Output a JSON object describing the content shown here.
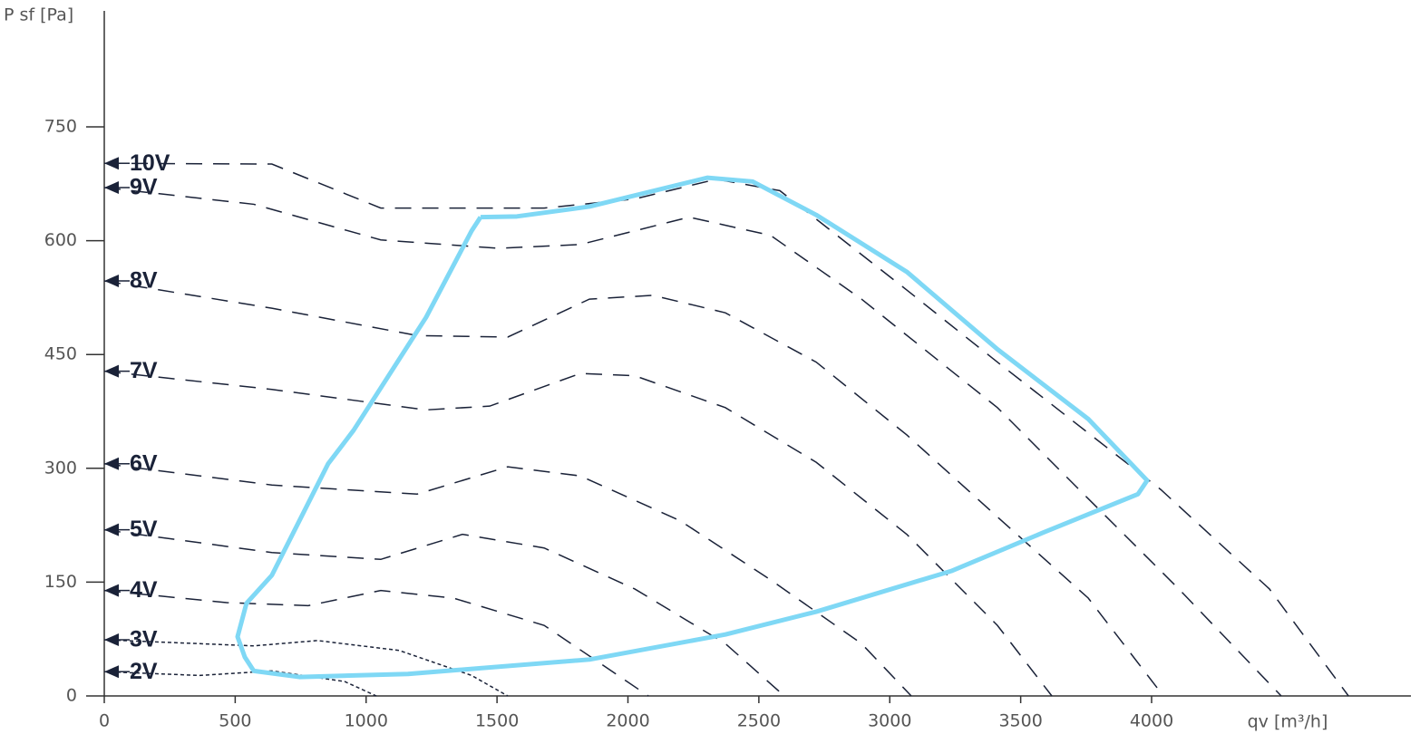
{
  "chart_data": {
    "type": "line",
    "ylabel": "P sf [Pa]",
    "xlabel": "qv [m³/h]",
    "xlim": [
      0,
      5000
    ],
    "ylim": [
      0,
      900
    ],
    "xticks": [
      0,
      500,
      1000,
      1500,
      2000,
      2500,
      3000,
      3500,
      4000
    ],
    "yticks": [
      0,
      150,
      300,
      450,
      600,
      750
    ],
    "series": [
      {
        "name": "10V",
        "color": "#1a2238",
        "dash": "dashed",
        "x": [
          0,
          640,
          1056,
          1680,
          2026,
          2338,
          2580,
          3065,
          3411,
          4035,
          4450,
          4752
        ],
        "values": [
          702,
          701,
          643,
          643,
          655,
          681,
          666,
          535,
          440,
          272,
          141,
          0
        ]
      },
      {
        "name": "9V",
        "color": "#1a2238",
        "dash": "dashed",
        "x": [
          0,
          571,
          1056,
          1506,
          1818,
          2234,
          2545,
          2892,
          3411,
          3758,
          4104,
          4495
        ],
        "values": [
          670,
          648,
          601,
          590,
          595,
          631,
          607,
          523,
          380,
          260,
          141,
          0
        ]
      },
      {
        "name": "8V",
        "color": "#1a2238",
        "dash": "dashed",
        "x": [
          0,
          640,
          1195,
          1541,
          1853,
          2095,
          2372,
          2719,
          3065,
          3411,
          3758,
          4045
        ],
        "values": [
          547,
          511,
          475,
          473,
          523,
          528,
          505,
          440,
          344,
          236,
          129,
          0
        ]
      },
      {
        "name": "7V",
        "color": "#1a2238",
        "dash": "dashed",
        "x": [
          0,
          640,
          1229,
          1472,
          1818,
          2026,
          2372,
          2719,
          3065,
          3411,
          3619
        ],
        "values": [
          428,
          404,
          377,
          382,
          425,
          422,
          380,
          308,
          213,
          93,
          0
        ]
      },
      {
        "name": "6V",
        "color": "#1a2238",
        "dash": "dashed",
        "x": [
          0,
          640,
          1195,
          1541,
          1818,
          2199,
          2545,
          2892,
          3082
        ],
        "values": [
          306,
          278,
          266,
          302,
          290,
          231,
          153,
          69,
          0
        ]
      },
      {
        "name": "5V",
        "color": "#1a2238",
        "dash": "dashed",
        "x": [
          0,
          640,
          1056,
          1368,
          1680,
          2026,
          2372,
          2597
        ],
        "values": [
          219,
          189,
          180,
          213,
          195,
          141,
          69,
          0
        ]
      },
      {
        "name": "4V",
        "color": "#1a2238",
        "dash": "dashed",
        "x": [
          0,
          467,
          779,
          1056,
          1333,
          1680,
          2078
        ],
        "values": [
          139,
          123,
          119,
          139,
          129,
          93,
          0
        ]
      },
      {
        "name": "3V",
        "color": "#1a2238",
        "dash": "dotted",
        "x": [
          0,
          571,
          814,
          1126,
          1403,
          1541
        ],
        "values": [
          74,
          66,
          73,
          60,
          27,
          0
        ]
      },
      {
        "name": "2V",
        "color": "#1a2238",
        "dash": "dotted",
        "x": [
          0,
          364,
          640,
          918,
          1039
        ],
        "values": [
          32,
          27,
          33,
          19,
          0
        ]
      }
    ],
    "envelope": {
      "color": "#7fd8f5",
      "x": [
        1437,
        1576,
        1853,
        2303,
        2476,
        2719,
        3065,
        3411,
        3758,
        3983,
        3948,
        3584,
        3238,
        2719,
        2372,
        1853,
        1160,
        745,
        571,
        537,
        509,
        543,
        640,
        855,
        952,
        1229,
        1403,
        1437
      ],
      "values": [
        631,
        632,
        645,
        683,
        678,
        634,
        559,
        457,
        365,
        284,
        266,
        215,
        165,
        111,
        81,
        48,
        29,
        25,
        33,
        51,
        78,
        122,
        159,
        306,
        350,
        499,
        613,
        631
      ]
    }
  }
}
